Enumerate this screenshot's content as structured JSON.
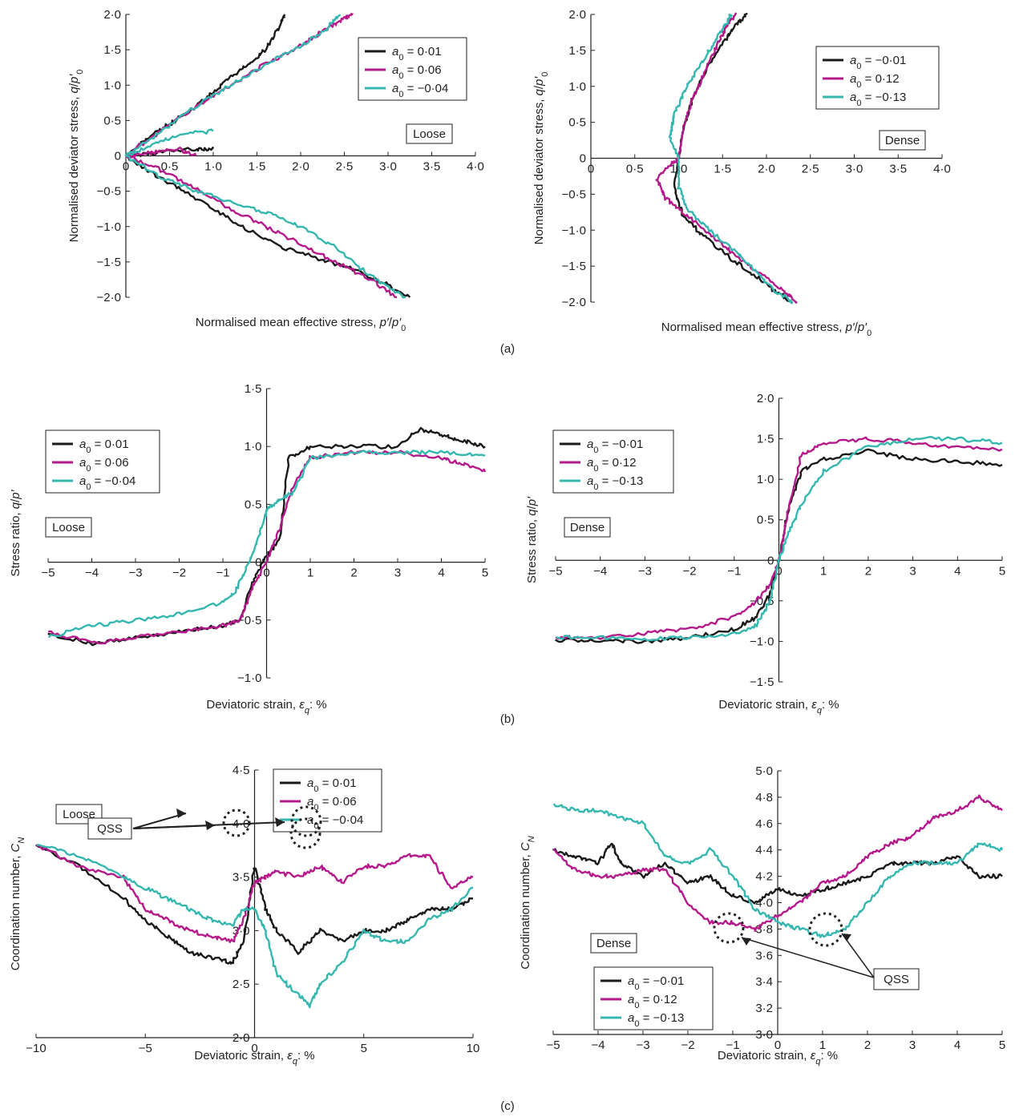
{
  "colors": {
    "black": "#1a1a1a",
    "magenta": "#b5198a",
    "cyan": "#35b7b0"
  },
  "panel_labels": [
    "(a)",
    "(b)",
    "(c)"
  ],
  "chart_data": [
    {
      "id": "a-loose",
      "type": "line",
      "xlabel_parts": [
        "Normalised mean effective stress, ",
        "p′",
        "/",
        "p′",
        "0"
      ],
      "ylabel_parts": [
        "Normalised deviator stress, ",
        "q",
        "/",
        "p′",
        "0"
      ],
      "xlim": [
        0,
        4
      ],
      "ylim": [
        -2,
        2
      ],
      "xticks": [
        "0",
        "0·5",
        "1·0",
        "1·5",
        "2·0",
        "2·5",
        "3·0",
        "3·5",
        "4·0"
      ],
      "yticks": [
        "−2·0",
        "−1·5",
        "−1·0",
        "−0·5",
        "0",
        "0·5",
        "1·0",
        "1·5",
        "2·0"
      ],
      "label_box": "Loose",
      "legend_position": "top-right",
      "series": [
        {
          "name": "0·01",
          "color": "black",
          "x": [
            0,
            0.25,
            0.5,
            0.75,
            1.0,
            1.2,
            1.4,
            1.6,
            1.75,
            1.82
          ],
          "y": [
            0,
            0.25,
            0.45,
            0.65,
            0.9,
            1.1,
            1.3,
            1.5,
            1.8,
            2.0
          ]
        },
        {
          "name": "0·01",
          "color": "black",
          "x": [
            0,
            0.3,
            0.6,
            1.0,
            1.4,
            1.8,
            2.2,
            2.6,
            2.95,
            3.25
          ],
          "y": [
            0,
            -0.25,
            -0.45,
            -0.75,
            -1.05,
            -1.3,
            -1.45,
            -1.6,
            -1.8,
            -2.0
          ]
        },
        {
          "name": "0·01",
          "color": "black",
          "x": [
            0,
            0.4,
            0.8,
            1.0
          ],
          "y": [
            0,
            0.05,
            0.1,
            0.1
          ]
        },
        {
          "name": "0·06",
          "color": "magenta",
          "x": [
            0,
            0.4,
            0.8,
            1.2,
            1.6,
            2.0,
            2.3,
            2.5,
            2.6
          ],
          "y": [
            0,
            0.35,
            0.7,
            1.0,
            1.3,
            1.55,
            1.8,
            1.95,
            2.0
          ]
        },
        {
          "name": "0·06",
          "color": "magenta",
          "x": [
            0,
            0.4,
            0.8,
            1.2,
            1.6,
            2.0,
            2.4,
            2.8,
            3.1
          ],
          "y": [
            0,
            -0.2,
            -0.45,
            -0.75,
            -1.0,
            -1.25,
            -1.5,
            -1.75,
            -2.0
          ]
        },
        {
          "name": "0·06",
          "color": "magenta",
          "x": [
            0,
            0.3,
            0.6,
            0.8
          ],
          "y": [
            0,
            0.05,
            0.1,
            0.0
          ]
        },
        {
          "name": "−0·04",
          "color": "cyan",
          "x": [
            0,
            0.4,
            0.8,
            1.2,
            1.6,
            2.0,
            2.3,
            2.45
          ],
          "y": [
            0,
            0.35,
            0.7,
            1.0,
            1.3,
            1.55,
            1.8,
            2.0
          ]
        },
        {
          "name": "−0·04",
          "color": "cyan",
          "x": [
            0,
            0.4,
            0.8,
            1.2,
            1.6,
            2.0,
            2.4,
            2.8,
            3.2
          ],
          "y": [
            0,
            -0.3,
            -0.5,
            -0.65,
            -0.8,
            -1.0,
            -1.3,
            -1.7,
            -2.0
          ]
        },
        {
          "name": "−0·04",
          "color": "cyan",
          "x": [
            0,
            0.3,
            0.6,
            1.0
          ],
          "y": [
            0,
            0.15,
            0.3,
            0.35
          ]
        }
      ]
    },
    {
      "id": "a-dense",
      "type": "line",
      "xlabel_parts": [
        "Normalised mean effective stress, ",
        "p′",
        "/",
        "p′",
        "0"
      ],
      "ylabel_parts": [
        "Normalised deviator stress, ",
        "q",
        "/",
        "p′",
        "0"
      ],
      "xlim": [
        0,
        4
      ],
      "ylim": [
        -2,
        2
      ],
      "xticks": [
        "0",
        "0·5",
        "1·0",
        "1·5",
        "2·0",
        "2·5",
        "3·0",
        "3·5",
        "4·0"
      ],
      "yticks": [
        "−2·0",
        "−1·5",
        "−1·0",
        "−0·5",
        "0",
        "0·5",
        "1·0",
        "1·5",
        "2·0"
      ],
      "label_box": "Dense",
      "legend_position": "top-right",
      "series": [
        {
          "name": "−0·01",
          "color": "black",
          "x": [
            1.0,
            1.05,
            1.15,
            1.3,
            1.5,
            1.65,
            1.78
          ],
          "y": [
            0,
            0.4,
            0.8,
            1.2,
            1.6,
            1.85,
            2.0
          ]
        },
        {
          "name": "−0·01",
          "color": "black",
          "x": [
            1.0,
            0.95,
            1.05,
            1.3,
            1.6,
            1.9,
            2.1,
            2.3
          ],
          "y": [
            0,
            -0.4,
            -0.8,
            -1.1,
            -1.4,
            -1.65,
            -1.85,
            -2.0
          ]
        },
        {
          "name": "0·12",
          "color": "magenta",
          "x": [
            1.0,
            1.05,
            1.15,
            1.3,
            1.45,
            1.55,
            1.65
          ],
          "y": [
            0,
            0.4,
            0.8,
            1.2,
            1.6,
            1.85,
            2.0
          ]
        },
        {
          "name": "0·12",
          "color": "magenta",
          "x": [
            1.0,
            0.85,
            0.75,
            0.85,
            1.1,
            1.4,
            1.7,
            2.0,
            2.2,
            2.35
          ],
          "y": [
            0,
            -0.15,
            -0.3,
            -0.55,
            -0.8,
            -1.1,
            -1.4,
            -1.65,
            -1.85,
            -2.0
          ]
        },
        {
          "name": "−0·13",
          "color": "cyan",
          "x": [
            1.0,
            0.9,
            0.95,
            1.05,
            1.2,
            1.35,
            1.5,
            1.6
          ],
          "y": [
            0,
            0.3,
            0.6,
            0.9,
            1.2,
            1.5,
            1.8,
            2.0
          ]
        },
        {
          "name": "−0·13",
          "color": "cyan",
          "x": [
            1.0,
            1.0,
            1.1,
            1.35,
            1.65,
            1.9,
            2.1,
            2.3
          ],
          "y": [
            0,
            -0.4,
            -0.7,
            -1.0,
            -1.3,
            -1.6,
            -1.85,
            -2.0
          ]
        }
      ]
    },
    {
      "id": "b-loose",
      "type": "line",
      "xlabel_parts": [
        "Deviatoric strain, ",
        "ε",
        "q",
        ": %"
      ],
      "ylabel_parts": [
        "Stress ratio, ",
        "q",
        "/",
        "p′"
      ],
      "xlim": [
        -5,
        5
      ],
      "ylim": [
        -1,
        1.5
      ],
      "xticks": [
        "−5",
        "−4",
        "−3",
        "−2",
        "−1",
        "0",
        "1",
        "2",
        "3",
        "4",
        "5"
      ],
      "yticks": [
        "−1·0",
        "−0·5",
        "0",
        "0·5",
        "1·0",
        "1·5"
      ],
      "label_box": "Loose",
      "legend_position": "top-left",
      "series": [
        {
          "name": "0·01",
          "color": "black",
          "x": [
            -5,
            -4,
            -3,
            -2,
            -1,
            -0.6,
            -0.3,
            0,
            0.3,
            0.5,
            1,
            2,
            3,
            3.5,
            4,
            4.5,
            5
          ],
          "y": [
            -0.62,
            -0.7,
            -0.65,
            -0.6,
            -0.55,
            -0.5,
            -0.15,
            0.05,
            0.2,
            0.9,
            1.0,
            1.0,
            1.0,
            1.15,
            1.1,
            1.05,
            1.0
          ]
        },
        {
          "name": "0·06",
          "color": "magenta",
          "x": [
            -5,
            -4,
            -3,
            -2,
            -1,
            -0.6,
            -0.3,
            0,
            0.3,
            0.6,
            1,
            2,
            3,
            4,
            4.5,
            5
          ],
          "y": [
            -0.6,
            -0.7,
            -0.65,
            -0.6,
            -0.55,
            -0.5,
            -0.2,
            0.0,
            0.3,
            0.65,
            0.9,
            0.95,
            0.95,
            0.9,
            0.85,
            0.78
          ]
        },
        {
          "name": "−0·04",
          "color": "cyan",
          "x": [
            -5,
            -4,
            -3,
            -2,
            -1,
            -0.7,
            -0.4,
            -0.2,
            0,
            0.3,
            0.6,
            1,
            2,
            3,
            4,
            5
          ],
          "y": [
            -0.65,
            -0.55,
            -0.5,
            -0.45,
            -0.35,
            -0.25,
            0.0,
            0.2,
            0.45,
            0.55,
            0.6,
            0.9,
            0.95,
            0.95,
            0.95,
            0.92
          ]
        }
      ]
    },
    {
      "id": "b-dense",
      "type": "line",
      "xlabel_parts": [
        "Deviatoric strain, ",
        "ε",
        "q",
        ": %"
      ],
      "ylabel_parts": [
        "Stress ratio, ",
        "q",
        "/",
        "p′"
      ],
      "xlim": [
        -5,
        5
      ],
      "ylim": [
        -1.5,
        2
      ],
      "xticks": [
        "−5",
        "−4",
        "−3",
        "−2",
        "−1",
        "0",
        "1",
        "2",
        "3",
        "4",
        "5"
      ],
      "yticks": [
        "−1·5",
        "−1·0",
        "−0·5",
        "0",
        "0·5",
        "1·0",
        "1·5",
        "2·0"
      ],
      "label_box": "Dense",
      "legend_position": "top-left",
      "series": [
        {
          "name": "−0·01",
          "color": "black",
          "x": [
            -5,
            -4,
            -3,
            -2,
            -1,
            -0.5,
            -0.2,
            0,
            0.2,
            0.5,
            1,
            2,
            3,
            4,
            5
          ],
          "y": [
            -0.98,
            -1.0,
            -1.0,
            -0.95,
            -0.85,
            -0.7,
            -0.4,
            0.0,
            0.6,
            1.1,
            1.25,
            1.35,
            1.25,
            1.22,
            1.18
          ]
        },
        {
          "name": "0·12",
          "color": "magenta",
          "x": [
            -5,
            -4,
            -3,
            -2,
            -1,
            -0.5,
            -0.2,
            0,
            0.2,
            0.5,
            1,
            2,
            3,
            4,
            5
          ],
          "y": [
            -0.95,
            -0.95,
            -0.9,
            -0.85,
            -0.7,
            -0.5,
            -0.3,
            0.0,
            0.6,
            1.3,
            1.45,
            1.5,
            1.45,
            1.4,
            1.37
          ]
        },
        {
          "name": "−0·13",
          "color": "cyan",
          "x": [
            -5,
            -4,
            -3,
            -2,
            -1,
            -0.5,
            -0.2,
            0,
            0.2,
            0.5,
            1,
            2,
            3,
            4,
            5
          ],
          "y": [
            -0.95,
            -0.95,
            -0.97,
            -0.95,
            -0.9,
            -0.8,
            -0.5,
            0.0,
            0.3,
            0.7,
            1.1,
            1.4,
            1.5,
            1.5,
            1.45
          ]
        }
      ]
    },
    {
      "id": "c-loose",
      "type": "line",
      "xlabel_parts": [
        "Deviatoric strain, ",
        "ε",
        "q",
        ": %"
      ],
      "ylabel_parts": [
        "Coordination number, ",
        "C",
        "N"
      ],
      "xlim": [
        -10,
        10
      ],
      "ylim": [
        2.0,
        4.5
      ],
      "xticks": [
        "−10",
        "−5",
        "0",
        "5",
        "10"
      ],
      "yticks": [
        "2·0",
        "2·5",
        "3·0",
        "3·5",
        "4·0",
        "4·5"
      ],
      "label_box": "Loose",
      "legend_position": "top-right",
      "annotation": "QSS",
      "series": [
        {
          "name": "0·01",
          "color": "black",
          "x": [
            -10,
            -8,
            -6,
            -5,
            -4,
            -3,
            -2,
            -1,
            -0.5,
            0,
            0.5,
            1,
            2,
            3,
            4,
            5,
            6,
            7,
            8,
            9,
            10
          ],
          "y": [
            3.8,
            3.6,
            3.3,
            3.1,
            2.95,
            2.8,
            2.75,
            2.7,
            2.9,
            3.6,
            3.2,
            3.0,
            2.8,
            3.0,
            2.9,
            3.0,
            3.0,
            3.1,
            3.2,
            3.2,
            3.3
          ]
        },
        {
          "name": "0·06",
          "color": "magenta",
          "x": [
            -10,
            -8,
            -6,
            -5,
            -4,
            -3,
            -2,
            -1,
            -0.5,
            0,
            0.5,
            1,
            2,
            3,
            4,
            5,
            6,
            7,
            8,
            9,
            10
          ],
          "y": [
            3.8,
            3.6,
            3.5,
            3.2,
            3.1,
            3.0,
            2.95,
            2.9,
            3.1,
            3.45,
            3.5,
            3.55,
            3.5,
            3.6,
            3.45,
            3.6,
            3.6,
            3.7,
            3.7,
            3.4,
            3.5
          ]
        },
        {
          "name": "−0·04",
          "color": "cyan",
          "x": [
            -10,
            -8,
            -6,
            -5,
            -4,
            -3,
            -2,
            -1,
            -0.5,
            0,
            0.5,
            1,
            2,
            2.5,
            3,
            4,
            5,
            6,
            7,
            8,
            9,
            10
          ],
          "y": [
            3.8,
            3.7,
            3.5,
            3.4,
            3.3,
            3.2,
            3.1,
            3.05,
            3.2,
            3.2,
            3.0,
            2.6,
            2.4,
            2.3,
            2.5,
            2.7,
            3.0,
            2.9,
            2.9,
            3.1,
            3.2,
            3.4
          ]
        }
      ]
    },
    {
      "id": "c-dense",
      "type": "line",
      "xlabel_parts": [
        "Deviatoric strain, ",
        "ε",
        "q",
        ": %"
      ],
      "ylabel_parts": [
        "Coordination number, ",
        "C",
        "N"
      ],
      "xlim": [
        -5,
        5
      ],
      "ylim": [
        3.0,
        5.0
      ],
      "xticks": [
        "−5",
        "−4",
        "−3",
        "−2",
        "−1",
        "0",
        "1",
        "2",
        "3",
        "4",
        "5"
      ],
      "yticks": [
        "3·0",
        "3·2",
        "3·4",
        "3·6",
        "3·8",
        "4·0",
        "4·2",
        "4·4",
        "4·6",
        "4·8",
        "5·0"
      ],
      "label_box": "Dense",
      "legend_position": "bottom-left",
      "annotation": "QSS",
      "series": [
        {
          "name": "−0·01",
          "color": "black",
          "x": [
            -5,
            -4.5,
            -4,
            -3.7,
            -3.5,
            -3,
            -2.5,
            -2,
            -1.5,
            -1,
            -0.5,
            0,
            0.5,
            1,
            1.5,
            2,
            2.5,
            3,
            3.5,
            4,
            4.5,
            5
          ],
          "y": [
            4.4,
            4.35,
            4.3,
            4.45,
            4.3,
            4.2,
            4.3,
            4.15,
            4.2,
            4.05,
            4.0,
            4.1,
            4.05,
            4.1,
            4.15,
            4.2,
            4.3,
            4.3,
            4.3,
            4.35,
            4.2,
            4.2
          ]
        },
        {
          "name": "0·12",
          "color": "magenta",
          "x": [
            -5,
            -4.5,
            -4,
            -3.5,
            -3,
            -2.5,
            -2,
            -1.5,
            -1,
            -0.5,
            0,
            0.5,
            1,
            1.5,
            2,
            2.5,
            3,
            3.5,
            4,
            4.5,
            5
          ],
          "y": [
            4.4,
            4.25,
            4.2,
            4.2,
            4.25,
            4.25,
            4.0,
            3.85,
            3.85,
            3.8,
            3.9,
            4.0,
            4.15,
            4.2,
            4.35,
            4.45,
            4.5,
            4.65,
            4.7,
            4.8,
            4.7
          ]
        },
        {
          "name": "−0·13",
          "color": "cyan",
          "x": [
            -5,
            -4.5,
            -4,
            -3.5,
            -3,
            -2.5,
            -2,
            -1.5,
            -1,
            -0.5,
            0,
            0.5,
            1,
            1.5,
            2,
            2.5,
            3,
            3.5,
            4,
            4.5,
            5
          ],
          "y": [
            4.75,
            4.7,
            4.7,
            4.65,
            4.6,
            4.35,
            4.3,
            4.4,
            4.2,
            3.95,
            3.85,
            3.8,
            3.75,
            3.8,
            4.0,
            4.2,
            4.3,
            4.3,
            4.3,
            4.45,
            4.4
          ]
        }
      ]
    }
  ]
}
